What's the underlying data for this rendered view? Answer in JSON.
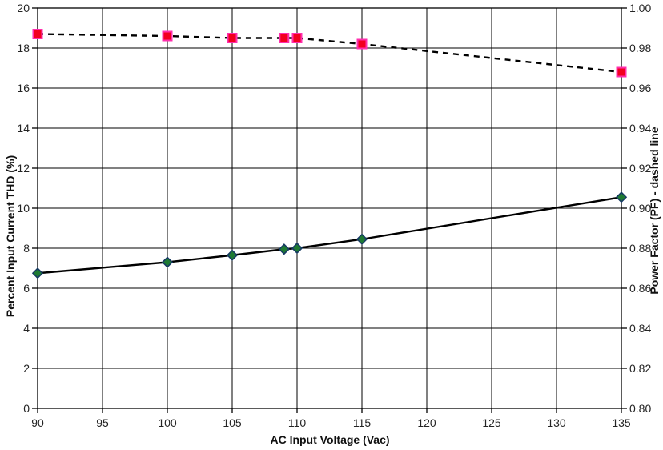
{
  "figure": {
    "background": "#ffffff",
    "grid_color": "#000000",
    "axis_color": "#000000",
    "tick_label_color": "#242424"
  },
  "chart_data": {
    "type": "line",
    "title": "",
    "xlabel": "AC Input Voltage (Vac)",
    "ylabel_left": "Percent Input Current THD (%)",
    "ylabel_right": "Power Factor (PF) - dashed line",
    "xlim": [
      90,
      135
    ],
    "x_ticks": [
      90,
      95,
      100,
      105,
      110,
      115,
      120,
      125,
      130,
      135
    ],
    "ylim_left": [
      0,
      20
    ],
    "y_ticks_left": [
      "0",
      "2",
      "4",
      "6",
      "8",
      "10",
      "12",
      "14",
      "16",
      "18",
      "20"
    ],
    "ylim_right": [
      0.8,
      1.0
    ],
    "y_ticks_right": [
      "0.80",
      "0.82",
      "0.84",
      "0.86",
      "0.88",
      "0.90",
      "0.92",
      "0.94",
      "0.96",
      "0.98",
      "1.00"
    ],
    "grid": true,
    "legend": "none",
    "series": [
      {
        "name": "Percent Input Current THD",
        "axis": "left",
        "line_style": "solid",
        "line_color": "#000000",
        "marker": "diamond",
        "marker_fill": "#1e7a33",
        "marker_border": "#173a63",
        "x": [
          90,
          100,
          105,
          109,
          110,
          115,
          135
        ],
        "values": [
          6.75,
          7.3,
          7.65,
          7.95,
          8.0,
          8.45,
          10.55
        ]
      },
      {
        "name": "Power Factor (PF)",
        "axis": "right",
        "line_style": "dashed",
        "line_color": "#000000",
        "marker": "square",
        "marker_fill": "#f2001e",
        "marker_border": "#ff2fae",
        "x": [
          90,
          100,
          105,
          109,
          110,
          115,
          135
        ],
        "values": [
          0.987,
          0.986,
          0.985,
          0.985,
          0.985,
          0.982,
          0.968
        ]
      }
    ]
  }
}
